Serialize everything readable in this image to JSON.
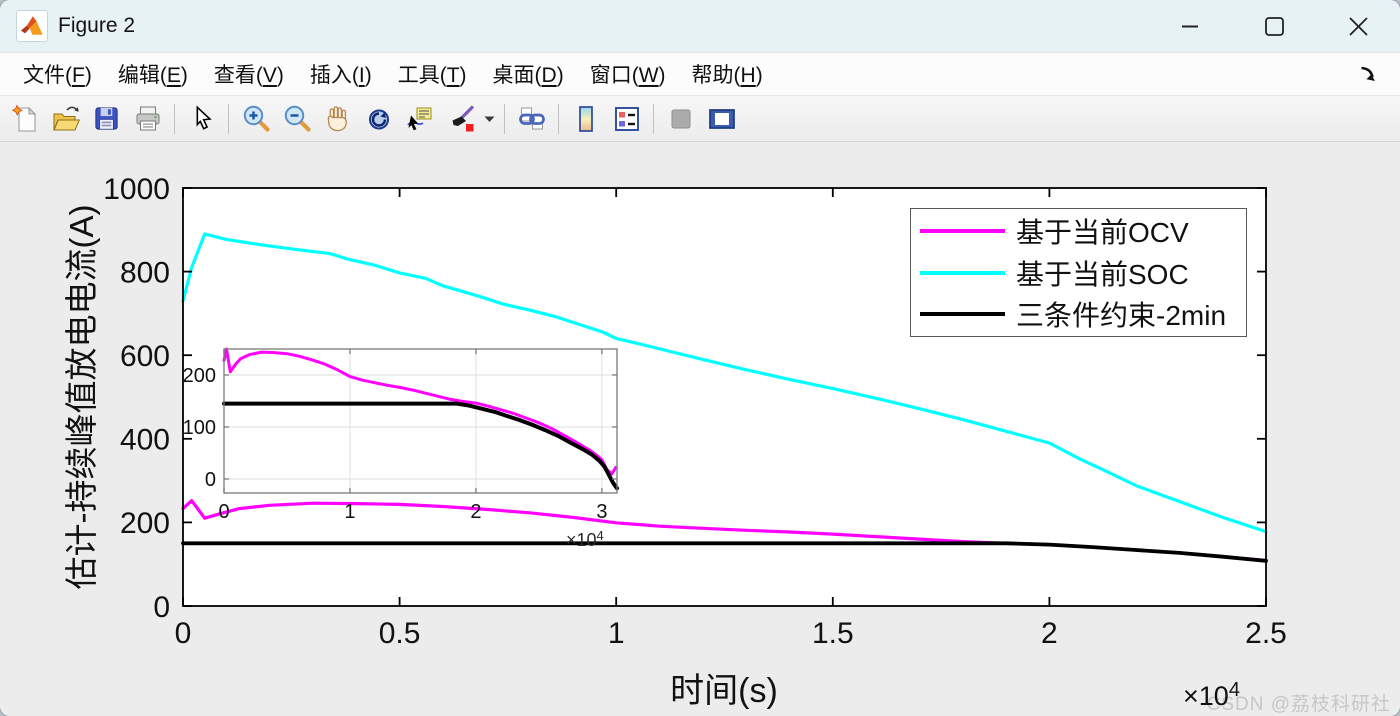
{
  "window": {
    "title": "Figure 2"
  },
  "titlebar": {
    "controls": [
      "minimize",
      "maximize",
      "close"
    ]
  },
  "menubar": {
    "items": [
      {
        "pre": "文件(",
        "key": "F",
        "post": ")"
      },
      {
        "pre": "编辑(",
        "key": "E",
        "post": ")"
      },
      {
        "pre": "查看(",
        "key": "V",
        "post": ")"
      },
      {
        "pre": "插入(",
        "key": "I",
        "post": ")"
      },
      {
        "pre": "工具(",
        "key": "T",
        "post": ")"
      },
      {
        "pre": "桌面(",
        "key": "D",
        "post": ")"
      },
      {
        "pre": "窗口(",
        "key": "W",
        "post": ")"
      },
      {
        "pre": "帮助(",
        "key": "H",
        "post": ")"
      }
    ],
    "dock_icon": "dock-arrow-icon"
  },
  "toolbar": {
    "icons": [
      "new-figure-icon",
      "open-file-icon",
      "save-figure-icon",
      "print-icon",
      "edit-plot-icon",
      "zoom-in-icon",
      "zoom-out-icon",
      "pan-icon",
      "rotate-3d-icon",
      "data-cursor-icon",
      "brush-icon",
      "brush-dropdown-icon",
      "link-plot-icon",
      "insert-colorbar-icon",
      "insert-legend-icon",
      "hide-plot-tools-icon",
      "show-plot-tools-icon"
    ]
  },
  "watermark": {
    "text": "CSDN @荔枝科研社"
  },
  "chart_data": {
    "type": "line",
    "title": "",
    "xlabel": "时间(s)",
    "ylabel": "估计-持续峰值放电电流(A)",
    "x_multiplier": {
      "base": "×10",
      "exp": "4"
    },
    "xlim": [
      0,
      2.5
    ],
    "ylim": [
      0,
      1000
    ],
    "x_tick_values": [
      0,
      0.5,
      1,
      1.5,
      2,
      2.5
    ],
    "x_tick_labels": [
      "0",
      "0.5",
      "1",
      "1.5",
      "2",
      "2.5"
    ],
    "y_tick_values": [
      0,
      200,
      400,
      600,
      800,
      1000
    ],
    "y_tick_labels": [
      "0",
      "200",
      "400",
      "600",
      "800",
      "1000"
    ],
    "grid": false,
    "legend_position": "top-right",
    "series": [
      {
        "name": "基于当前OCV",
        "color": "#FF00FF",
        "points": [
          [
            0,
            233
          ],
          [
            0.02,
            252
          ],
          [
            0.05,
            210
          ],
          [
            0.09,
            222
          ],
          [
            0.13,
            233
          ],
          [
            0.2,
            241
          ],
          [
            0.3,
            246
          ],
          [
            0.4,
            245
          ],
          [
            0.5,
            243
          ],
          [
            0.6,
            238
          ],
          [
            0.7,
            231
          ],
          [
            0.8,
            223
          ],
          [
            0.9,
            212
          ],
          [
            1.0,
            199
          ],
          [
            1.1,
            191
          ],
          [
            1.2,
            186
          ],
          [
            1.3,
            181
          ],
          [
            1.4,
            177
          ],
          [
            1.5,
            172
          ],
          [
            1.6,
            166
          ],
          [
            1.7,
            160
          ],
          [
            1.8,
            154
          ],
          [
            1.9,
            150
          ],
          [
            2.0,
            147
          ],
          [
            2.1,
            141
          ],
          [
            2.2,
            134
          ],
          [
            2.3,
            127
          ],
          [
            2.4,
            118
          ],
          [
            2.5,
            109
          ]
        ]
      },
      {
        "name": "基于当前SOC",
        "color": "#00FFFF",
        "points": [
          [
            0,
            730
          ],
          [
            0.02,
            810
          ],
          [
            0.05,
            890
          ],
          [
            0.1,
            877
          ],
          [
            0.18,
            864
          ],
          [
            0.26,
            853
          ],
          [
            0.34,
            843
          ],
          [
            0.38,
            830
          ],
          [
            0.44,
            816
          ],
          [
            0.5,
            797
          ],
          [
            0.56,
            784
          ],
          [
            0.6,
            766
          ],
          [
            0.68,
            742
          ],
          [
            0.74,
            722
          ],
          [
            0.8,
            708
          ],
          [
            0.86,
            692
          ],
          [
            0.92,
            672
          ],
          [
            0.97,
            655
          ],
          [
            1.0,
            640
          ],
          [
            1.05,
            628
          ],
          [
            1.12,
            610
          ],
          [
            1.2,
            590
          ],
          [
            1.3,
            565
          ],
          [
            1.4,
            542
          ],
          [
            1.5,
            520
          ],
          [
            1.6,
            497
          ],
          [
            1.7,
            472
          ],
          [
            1.8,
            446
          ],
          [
            1.9,
            418
          ],
          [
            2.0,
            390
          ],
          [
            2.07,
            352
          ],
          [
            2.12,
            328
          ],
          [
            2.2,
            288
          ],
          [
            2.3,
            250
          ],
          [
            2.4,
            212
          ],
          [
            2.5,
            178
          ]
        ]
      },
      {
        "name": "三条件约束-2min",
        "color": "#000000",
        "points": [
          [
            0,
            150
          ],
          [
            1.9,
            150
          ],
          [
            2.0,
            147
          ],
          [
            2.1,
            141
          ],
          [
            2.2,
            134
          ],
          [
            2.3,
            127
          ],
          [
            2.4,
            118
          ],
          [
            2.5,
            108
          ]
        ]
      }
    ],
    "inset": {
      "xlim": [
        0,
        3.12
      ],
      "ylim": [
        -27,
        250
      ],
      "x_multiplier": {
        "base": "×10",
        "exp": "4"
      },
      "x_tick_values": [
        0,
        1,
        2,
        3
      ],
      "x_tick_labels": [
        "0",
        "1",
        "2",
        "3"
      ],
      "y_tick_values": [
        0,
        100,
        200
      ],
      "y_tick_labels": [
        "0",
        "100",
        "200"
      ],
      "grid": true,
      "series": [
        {
          "name": "基于当前OCV",
          "color": "#FF00FF",
          "points": [
            [
              0,
              228
            ],
            [
              0.02,
              250
            ],
            [
              0.05,
              206
            ],
            [
              0.09,
              220
            ],
            [
              0.13,
              231
            ],
            [
              0.2,
              239
            ],
            [
              0.3,
              244
            ],
            [
              0.4,
              243
            ],
            [
              0.5,
              241
            ],
            [
              0.6,
              236
            ],
            [
              0.7,
              229
            ],
            [
              0.8,
              221
            ],
            [
              0.9,
              210
            ],
            [
              1.0,
              197
            ],
            [
              1.1,
              190
            ],
            [
              1.2,
              185
            ],
            [
              1.3,
              180
            ],
            [
              1.4,
              176
            ],
            [
              1.5,
              171
            ],
            [
              1.6,
              165
            ],
            [
              1.7,
              159
            ],
            [
              1.8,
              153
            ],
            [
              1.9,
              149
            ],
            [
              2.0,
              146
            ],
            [
              2.1,
              140
            ],
            [
              2.2,
              133
            ],
            [
              2.3,
              126
            ],
            [
              2.4,
              117
            ],
            [
              2.5,
              108
            ],
            [
              2.6,
              97
            ],
            [
              2.7,
              84
            ],
            [
              2.8,
              70
            ],
            [
              2.9,
              56
            ],
            [
              2.95,
              47
            ],
            [
              3.0,
              37
            ],
            [
              3.04,
              18
            ],
            [
              3.08,
              10
            ],
            [
              3.11,
              22
            ]
          ]
        },
        {
          "name": "三条件约束-2min",
          "color": "#000000",
          "points": [
            [
              0,
              145
            ],
            [
              1.85,
              145
            ],
            [
              1.95,
              141
            ],
            [
              2.05,
              135
            ],
            [
              2.15,
              129
            ],
            [
              2.25,
              121
            ],
            [
              2.35,
              113
            ],
            [
              2.45,
              104
            ],
            [
              2.55,
              94
            ],
            [
              2.65,
              83
            ],
            [
              2.75,
              70
            ],
            [
              2.85,
              57
            ],
            [
              2.92,
              47
            ],
            [
              2.98,
              35
            ],
            [
              3.02,
              24
            ],
            [
              3.06,
              6
            ],
            [
              3.09,
              -8
            ],
            [
              3.12,
              -18
            ]
          ]
        }
      ]
    }
  }
}
